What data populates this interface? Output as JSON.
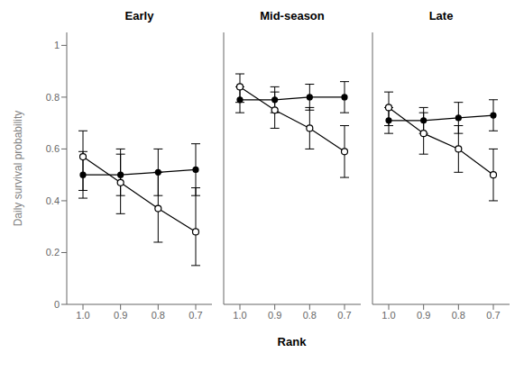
{
  "chart_data": [
    {
      "type": "line",
      "title": "Early",
      "categories": [
        "1.0",
        "0.9",
        "0.8",
        "0.7"
      ],
      "ylabel": "Daily survival probability",
      "ylim": [
        0,
        1.05
      ],
      "yticks": [
        0,
        0.2,
        0.4,
        0.6,
        0.8,
        1
      ],
      "series": [
        {
          "color": "#000000",
          "marker": "open_circle",
          "line_style": "solid",
          "values": [
            0.57,
            0.47,
            0.37,
            0.28
          ],
          "error_low": [
            0.13,
            0.12,
            0.13,
            0.13
          ],
          "error_high": [
            0.1,
            0.13,
            0.14,
            0.17
          ]
        },
        {
          "color": "#000000",
          "marker": "circle",
          "line_style": "solid",
          "values": [
            0.5,
            0.5,
            0.51,
            0.52
          ],
          "error_low": [
            0.09,
            0.08,
            0.09,
            0.1
          ],
          "error_high": [
            0.09,
            0.08,
            0.09,
            0.1
          ]
        }
      ]
    },
    {
      "type": "line",
      "title": "Mid-season",
      "categories": [
        "1.0",
        "0.9",
        "0.8",
        "0.7"
      ],
      "xlabel": "Rank",
      "ylim": [
        0,
        1.05
      ],
      "yticks": [
        0,
        0.2,
        0.4,
        0.6,
        0.8,
        1
      ],
      "tick_labels": "x",
      "series": [
        {
          "color": "#000000",
          "marker": "open_circle",
          "line_style": "solid",
          "values": [
            0.84,
            0.75,
            0.68,
            0.59
          ],
          "error_low": [
            0.06,
            0.07,
            0.08,
            0.1
          ],
          "error_high": [
            0.05,
            0.07,
            0.08,
            0.1
          ]
        },
        {
          "color": "#000000",
          "marker": "circle",
          "line_style": "solid",
          "values": [
            0.79,
            0.79,
            0.8,
            0.8
          ],
          "error_low": [
            0.05,
            0.05,
            0.05,
            0.06
          ],
          "error_high": [
            0.05,
            0.05,
            0.05,
            0.06
          ]
        }
      ]
    },
    {
      "type": "line",
      "title": "Late",
      "categories": [
        "1.0",
        "0.9",
        "0.8",
        "0.7"
      ],
      "ylim": [
        0,
        1.05
      ],
      "yticks": [
        0,
        0.2,
        0.4,
        0.6,
        0.8,
        1
      ],
      "tick_labels": "x",
      "series": [
        {
          "color": "#000000",
          "marker": "open_circle",
          "line_style": "solid",
          "values": [
            0.76,
            0.66,
            0.6,
            0.5
          ],
          "error_low": [
            0.07,
            0.08,
            0.09,
            0.1
          ],
          "error_high": [
            0.06,
            0.08,
            0.09,
            0.1
          ]
        },
        {
          "color": "#000000",
          "marker": "circle",
          "line_style": "solid",
          "values": [
            0.71,
            0.71,
            0.72,
            0.73
          ],
          "error_low": [
            0.05,
            0.05,
            0.06,
            0.06
          ],
          "error_high": [
            0.05,
            0.05,
            0.06,
            0.06
          ]
        }
      ]
    }
  ]
}
